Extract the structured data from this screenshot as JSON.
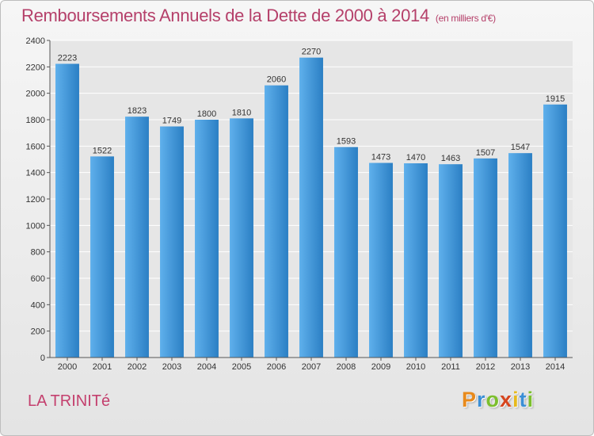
{
  "title": {
    "main": "Remboursements Annuels de la Dette de 2000 à 2014",
    "unit": "(en milliers d'€)"
  },
  "commune": "LA TRINITé",
  "logo": {
    "letters": [
      {
        "char": "P",
        "color": "#e88a1c"
      },
      {
        "char": "r",
        "color": "#3b8fd6"
      },
      {
        "char": "o",
        "color": "#7cbf2e"
      },
      {
        "char": "x",
        "color": "#d6451e"
      },
      {
        "char": "i",
        "color": "#e6b91c"
      },
      {
        "char": "t",
        "color": "#3b8fd6"
      },
      {
        "char": "i",
        "color": "#7cbf2e"
      }
    ]
  },
  "colors": {
    "bar_light": "#5fb0ec",
    "bar_dark": "#2b7fc4",
    "grid": "#ffffff",
    "plot_bg": "#e6e6e6"
  },
  "chart_data": {
    "type": "bar",
    "title": "Remboursements Annuels de la Dette de 2000 à 2014",
    "xlabel": "",
    "ylabel": "",
    "categories": [
      "2000",
      "2001",
      "2002",
      "2003",
      "2004",
      "2005",
      "2006",
      "2007",
      "2008",
      "2009",
      "2010",
      "2011",
      "2012",
      "2013",
      "2014"
    ],
    "values": [
      2223,
      1522,
      1823,
      1749,
      1800,
      1810,
      2060,
      2270,
      1593,
      1473,
      1470,
      1463,
      1507,
      1547,
      1915
    ],
    "ylim": [
      0,
      2400
    ],
    "yticks": [
      0,
      200,
      400,
      600,
      800,
      1000,
      1200,
      1400,
      1600,
      1800,
      2000,
      2200,
      2400
    ],
    "grid": true,
    "legend": "none"
  }
}
